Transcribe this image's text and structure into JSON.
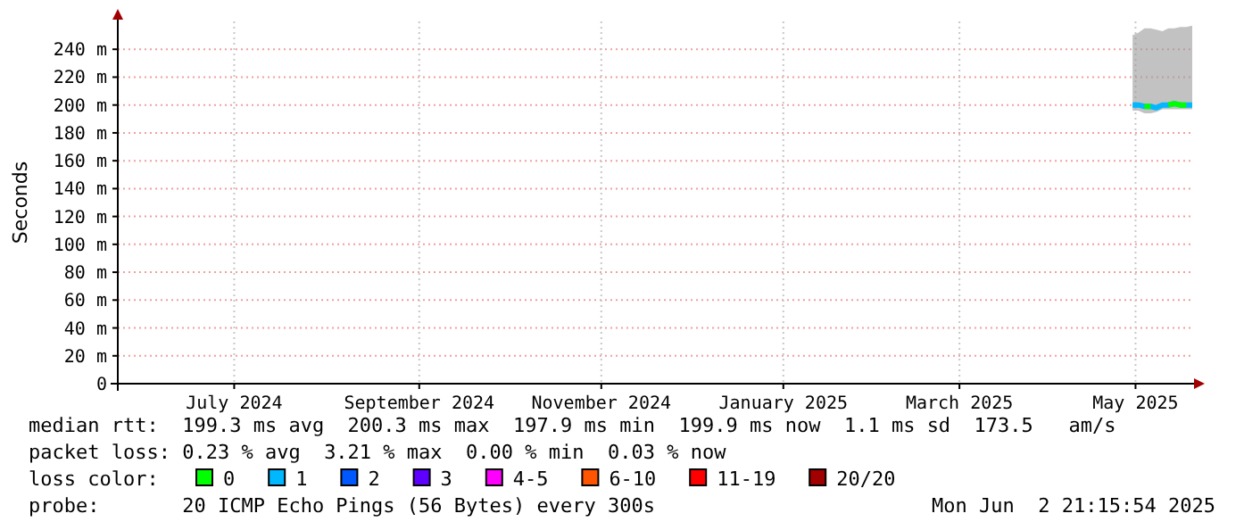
{
  "chart_data": {
    "type": "line",
    "ylabel": "Seconds",
    "x": [
      "2025-05-13",
      "2025-05-15",
      "2025-05-17",
      "2025-05-19",
      "2025-05-21",
      "2025-05-23",
      "2025-05-25",
      "2025-05-27",
      "2025-05-29",
      "2025-05-31",
      "2025-06-02"
    ],
    "xlim": [
      "2024-06-07",
      "2025-06-02"
    ],
    "xticks": [
      {
        "value": "2024-07-16",
        "label": "July 2024"
      },
      {
        "value": "2024-09-16",
        "label": "September 2024"
      },
      {
        "value": "2024-11-16",
        "label": "November 2024"
      },
      {
        "value": "2025-01-16",
        "label": "January 2025"
      },
      {
        "value": "2025-03-16",
        "label": "March 2025"
      },
      {
        "value": "2025-05-14",
        "label": "May 2025"
      }
    ],
    "ylim": [
      0,
      260
    ],
    "yticks": [
      0,
      {
        "value": 20,
        "label": "20 m"
      },
      {
        "value": 40,
        "label": "40 m"
      },
      {
        "value": 60,
        "label": "60 m"
      },
      {
        "value": 80,
        "label": "80 m"
      },
      {
        "value": 100,
        "label": "100 m"
      },
      {
        "value": 120,
        "label": "120 m"
      },
      {
        "value": 140,
        "label": "140 m"
      },
      {
        "value": 160,
        "label": "160 m"
      },
      {
        "value": 180,
        "label": "180 m"
      },
      {
        "value": 200,
        "label": "200 m"
      },
      {
        "value": 220,
        "label": "220 m"
      },
      {
        "value": 240,
        "label": "240 m"
      }
    ],
    "grid": true,
    "legend": "bottom",
    "legend_title": "loss color:",
    "series": [
      {
        "name": "0",
        "color": "#00ff00",
        "values": [
          null,
          null,
          199,
          199,
          null,
          null,
          200,
          201,
          200,
          200,
          null
        ]
      },
      {
        "name": "1",
        "color": "#00b8ff",
        "values": [
          200,
          200,
          199,
          199,
          198,
          200,
          200,
          201,
          200,
          200,
          200
        ],
        "lower": [
          196,
          196,
          194,
          194,
          195,
          197,
          197,
          197,
          197,
          197,
          197
        ],
        "upper": [
          250,
          252,
          255,
          255,
          254,
          253,
          255,
          255,
          256,
          256,
          257
        ]
      },
      {
        "name": "2",
        "color": "#0059ff",
        "values": [
          null,
          null,
          null,
          null,
          null,
          null,
          null,
          null,
          null,
          null,
          null
        ]
      },
      {
        "name": "3",
        "color": "#5e00ff",
        "values": [
          null,
          null,
          null,
          null,
          null,
          null,
          null,
          null,
          null,
          null,
          null
        ]
      },
      {
        "name": "4-5",
        "color": "#ff00ff",
        "values": [
          null,
          null,
          null,
          null,
          null,
          null,
          null,
          null,
          null,
          null,
          null
        ]
      },
      {
        "name": "6-10",
        "color": "#ff5500",
        "values": [
          null,
          null,
          null,
          null,
          null,
          null,
          null,
          null,
          null,
          null,
          null
        ]
      },
      {
        "name": "11-19",
        "color": "#ff0000",
        "values": [
          null,
          null,
          null,
          null,
          null,
          null,
          null,
          null,
          null,
          null,
          null
        ]
      },
      {
        "name": "20/20",
        "color": "#a10000",
        "values": [
          null,
          null,
          null,
          null,
          null,
          null,
          null,
          null,
          null,
          null,
          null
        ]
      }
    ],
    "annotations": [
      "median rtt:  199.3 ms avg  200.3 ms max  197.9 ms min  199.9 ms now  1.1 ms sd  173.5   am/s",
      "packet loss: 0.23 % avg  3.21 % max  0.00 % min  0.03 % now",
      "probe:       20 ICMP Echo Pings (56 Bytes) every 300s",
      "Mon Jun  2 21:15:54 2025"
    ]
  }
}
